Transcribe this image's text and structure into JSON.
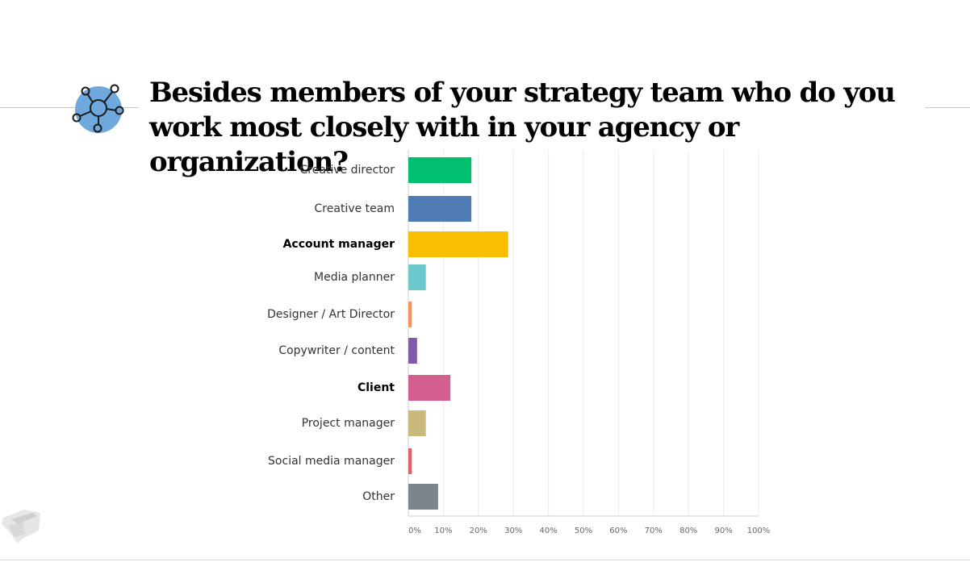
{
  "slide": {
    "title": "Besides members of your strategy team who do you work most closely with in your agency or organization?"
  },
  "icons": {
    "header": "network-icon",
    "footer": "logo-icon"
  },
  "colors": {
    "icon_fill": "#6fa8dc",
    "text": "#000000"
  },
  "chart_data": {
    "type": "bar",
    "orientation": "horizontal",
    "categories": [
      "Creative director",
      "Creative team",
      "Account manager",
      "Media planner",
      "Designer / Art Director",
      "Copywriter / content",
      "Client",
      "Project manager",
      "Social media manager",
      "Other"
    ],
    "emphasized": [
      false,
      false,
      true,
      false,
      false,
      false,
      true,
      false,
      false,
      false
    ],
    "values": [
      18,
      18,
      28.5,
      5,
      1,
      2.5,
      12,
      5,
      1,
      8.5
    ],
    "colors": [
      "#00bf6f",
      "#507cb6",
      "#f9be00",
      "#6bc8cd",
      "#f3955a",
      "#7d5ba6",
      "#d25f90",
      "#c9b97b",
      "#df5f6b",
      "#7c858b"
    ],
    "xlim": [
      0,
      100
    ],
    "x_ticks": [
      "0%",
      "10%",
      "20%",
      "30%",
      "40%",
      "50%",
      "60%",
      "70%",
      "80%",
      "90%",
      "100%"
    ],
    "grid": true
  }
}
